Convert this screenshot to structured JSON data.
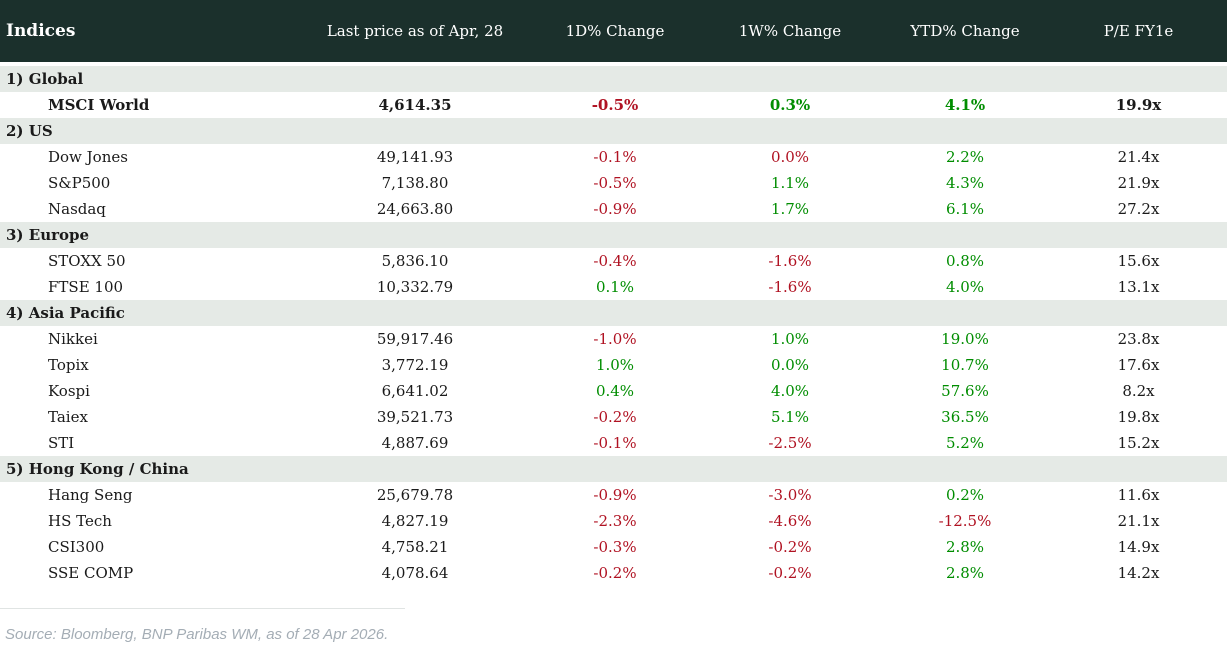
{
  "table": {
    "columns": [
      "Indices",
      "Last price as of Apr, 28",
      "1D% Change",
      "1W% Change",
      "YTD% Change",
      "P/E FY1e"
    ],
    "sections": [
      {
        "label": "1) Global",
        "rows": [
          {
            "name": "MSCI World",
            "bold": true,
            "price": "4,614.35",
            "d1": "-0.5%",
            "d1_dir": "down",
            "w1": "0.3%",
            "w1_dir": "up",
            "ytd": "4.1%",
            "ytd_dir": "up",
            "pe": "19.9x"
          }
        ]
      },
      {
        "label": "2) US",
        "rows": [
          {
            "name": "Dow Jones",
            "bold": false,
            "price": "49,141.93",
            "d1": "-0.1%",
            "d1_dir": "down",
            "w1": "0.0%",
            "w1_dir": "down",
            "ytd": "2.2%",
            "ytd_dir": "up",
            "pe": "21.4x"
          },
          {
            "name": "S&P500",
            "bold": false,
            "price": "7,138.80",
            "d1": "-0.5%",
            "d1_dir": "down",
            "w1": "1.1%",
            "w1_dir": "up",
            "ytd": "4.3%",
            "ytd_dir": "up",
            "pe": "21.9x"
          },
          {
            "name": "Nasdaq",
            "bold": false,
            "price": "24,663.80",
            "d1": "-0.9%",
            "d1_dir": "down",
            "w1": "1.7%",
            "w1_dir": "up",
            "ytd": "6.1%",
            "ytd_dir": "up",
            "pe": "27.2x"
          }
        ]
      },
      {
        "label": "3) Europe",
        "rows": [
          {
            "name": "STOXX 50",
            "bold": false,
            "price": "5,836.10",
            "d1": "-0.4%",
            "d1_dir": "down",
            "w1": "-1.6%",
            "w1_dir": "down",
            "ytd": "0.8%",
            "ytd_dir": "up",
            "pe": "15.6x"
          },
          {
            "name": "FTSE 100",
            "bold": false,
            "price": "10,332.79",
            "d1": "0.1%",
            "d1_dir": "up",
            "w1": "-1.6%",
            "w1_dir": "down",
            "ytd": "4.0%",
            "ytd_dir": "up",
            "pe": "13.1x"
          }
        ]
      },
      {
        "label": "4) Asia Pacific",
        "rows": [
          {
            "name": "Nikkei",
            "bold": false,
            "price": "59,917.46",
            "d1": "-1.0%",
            "d1_dir": "down",
            "w1": "1.0%",
            "w1_dir": "up",
            "ytd": "19.0%",
            "ytd_dir": "up",
            "pe": "23.8x"
          },
          {
            "name": "Topix",
            "bold": false,
            "price": "3,772.19",
            "d1": "1.0%",
            "d1_dir": "up",
            "w1": "0.0%",
            "w1_dir": "up",
            "ytd": "10.7%",
            "ytd_dir": "up",
            "pe": "17.6x"
          },
          {
            "name": "Kospi",
            "bold": false,
            "price": "6,641.02",
            "d1": "0.4%",
            "d1_dir": "up",
            "w1": "4.0%",
            "w1_dir": "up",
            "ytd": "57.6%",
            "ytd_dir": "up",
            "pe": "8.2x"
          },
          {
            "name": "Taiex",
            "bold": false,
            "price": "39,521.73",
            "d1": "-0.2%",
            "d1_dir": "down",
            "w1": "5.1%",
            "w1_dir": "up",
            "ytd": "36.5%",
            "ytd_dir": "up",
            "pe": "19.8x"
          },
          {
            "name": "STI",
            "bold": false,
            "price": "4,887.69",
            "d1": "-0.1%",
            "d1_dir": "down",
            "w1": "-2.5%",
            "w1_dir": "down",
            "ytd": "5.2%",
            "ytd_dir": "up",
            "pe": "15.2x"
          }
        ]
      },
      {
        "label": "5) Hong Kong / China",
        "rows": [
          {
            "name": "Hang Seng",
            "bold": false,
            "price": "25,679.78",
            "d1": "-0.9%",
            "d1_dir": "down",
            "w1": "-3.0%",
            "w1_dir": "down",
            "ytd": "0.2%",
            "ytd_dir": "up",
            "pe": "11.6x"
          },
          {
            "name": "HS Tech",
            "bold": false,
            "price": "4,827.19",
            "d1": "-2.3%",
            "d1_dir": "down",
            "w1": "-4.6%",
            "w1_dir": "down",
            "ytd": "-12.5%",
            "ytd_dir": "down",
            "pe": "21.1x"
          },
          {
            "name": "CSI300",
            "bold": false,
            "price": "4,758.21",
            "d1": "-0.3%",
            "d1_dir": "down",
            "w1": "-0.2%",
            "w1_dir": "down",
            "ytd": "2.8%",
            "ytd_dir": "up",
            "pe": "14.9x"
          },
          {
            "name": "SSE COMP",
            "bold": false,
            "price": "4,078.64",
            "d1": "-0.2%",
            "d1_dir": "down",
            "w1": "-0.2%",
            "w1_dir": "down",
            "ytd": "2.8%",
            "ytd_dir": "up",
            "pe": "14.2x"
          }
        ]
      }
    ]
  },
  "footer": {
    "source": "Source: Bloomberg, BNP Paribas WM, as of 28 Apr 2026."
  },
  "colors": {
    "header_bg": "#1b302c",
    "section_bg": "#e5eae6",
    "positive": "#008d00",
    "negative": "#b01222",
    "source_text": "#a4adb5"
  }
}
